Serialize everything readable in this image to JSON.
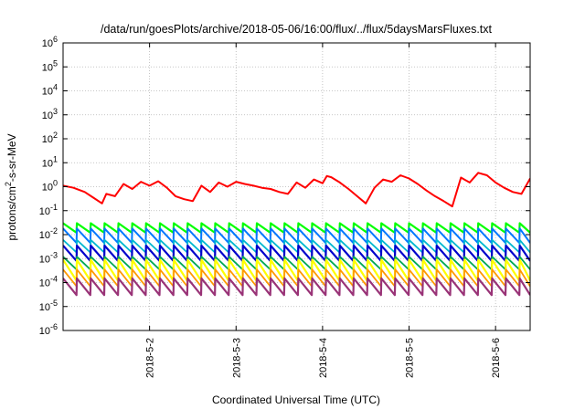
{
  "chart_data": {
    "type": "line",
    "title": "/data/run/goesPlots/archive/2018-05-06/16:00/flux/../flux/5daysMarsFluxes.txt",
    "xlabel": "Coordinated Universal Time (UTC)",
    "ylabel": "protons/cm²-s-sr-MeV",
    "ylabel_parts": {
      "pre": "protons/cm",
      "sup": "2",
      "post": "-s-sr-MeV"
    },
    "y_scale": "log",
    "ylim": [
      1e-06,
      1000000.0
    ],
    "y_ticks": [
      {
        "value": 1000000.0,
        "base": "10",
        "exp": "6"
      },
      {
        "value": 100000.0,
        "base": "10",
        "exp": "5"
      },
      {
        "value": 10000.0,
        "base": "10",
        "exp": "4"
      },
      {
        "value": 1000.0,
        "base": "10",
        "exp": "3"
      },
      {
        "value": 100.0,
        "base": "10",
        "exp": "2"
      },
      {
        "value": 10.0,
        "base": "10",
        "exp": "1"
      },
      {
        "value": 1.0,
        "base": "10",
        "exp": "0"
      },
      {
        "value": 0.1,
        "base": "10",
        "exp": "-1"
      },
      {
        "value": 0.01,
        "base": "10",
        "exp": "-2"
      },
      {
        "value": 0.001,
        "base": "10",
        "exp": "-3"
      },
      {
        "value": 0.0001,
        "base": "10",
        "exp": "-4"
      },
      {
        "value": 1e-05,
        "base": "10",
        "exp": "-5"
      },
      {
        "value": 1e-06,
        "base": "10",
        "exp": "-6"
      }
    ],
    "xlim": [
      0,
      5.4
    ],
    "x_ticks": [
      {
        "value": 1,
        "label": "2018-5-2"
      },
      {
        "value": 2,
        "label": "2018-5-3"
      },
      {
        "value": 3,
        "label": "2018-5-4"
      },
      {
        "value": 4,
        "label": "2018-5-5"
      },
      {
        "value": 5,
        "label": "2018-5-6"
      }
    ],
    "grid": true,
    "series": [
      {
        "color": "#ff0000",
        "width": 2,
        "x": [
          0.0,
          0.12,
          0.25,
          0.35,
          0.45,
          0.5,
          0.6,
          0.7,
          0.8,
          0.9,
          1.0,
          1.1,
          1.2,
          1.3,
          1.4,
          1.5,
          1.6,
          1.7,
          1.8,
          1.9,
          2.0,
          2.1,
          2.2,
          2.3,
          2.4,
          2.5,
          2.6,
          2.7,
          2.8,
          2.9,
          3.0,
          3.05,
          3.1,
          3.2,
          3.3,
          3.4,
          3.5,
          3.6,
          3.7,
          3.8,
          3.9,
          4.0,
          4.1,
          4.2,
          4.3,
          4.4,
          4.5,
          4.6,
          4.7,
          4.8,
          4.9,
          5.0,
          5.1,
          5.2,
          5.3,
          5.4
        ],
        "y": [
          1.1,
          0.9,
          0.6,
          0.35,
          0.2,
          0.5,
          0.4,
          1.3,
          0.8,
          1.6,
          1.1,
          1.7,
          0.9,
          0.4,
          0.3,
          0.25,
          1.1,
          0.6,
          1.5,
          1.0,
          1.6,
          1.3,
          1.1,
          0.9,
          0.8,
          0.6,
          0.5,
          1.5,
          0.9,
          2.0,
          1.4,
          2.8,
          2.5,
          1.5,
          0.8,
          0.4,
          0.2,
          0.9,
          2.0,
          1.6,
          3.0,
          2.2,
          1.3,
          0.7,
          0.4,
          0.25,
          0.15,
          2.4,
          1.5,
          3.8,
          3.0,
          1.5,
          0.9,
          0.6,
          0.5,
          2.2
        ]
      },
      {
        "color": "#00ff00",
        "width": 2.2,
        "hi": 0.03,
        "lo": 0.012
      },
      {
        "color": "#0077ff",
        "width": 2.0,
        "hi": 0.018,
        "lo": 0.0045
      },
      {
        "color": "#00b8d0",
        "width": 1.8,
        "hi": 0.006,
        "lo": 0.0018
      },
      {
        "color": "#0000cc",
        "width": 2.2,
        "hi": 0.0035,
        "lo": 0.0008
      },
      {
        "color": "#00aa55",
        "width": 1.8,
        "hi": 0.0012,
        "lo": 0.00035
      },
      {
        "color": "#ffff00",
        "width": 2.2,
        "hi": 0.0009,
        "lo": 0.00012
      },
      {
        "color": "#ff9900",
        "width": 1.8,
        "hi": 0.00035,
        "lo": 7e-05
      },
      {
        "color": "#993377",
        "width": 2.2,
        "hi": 0.00015,
        "lo": 3e-05
      }
    ],
    "sawtooth_period_days": 0.16
  }
}
